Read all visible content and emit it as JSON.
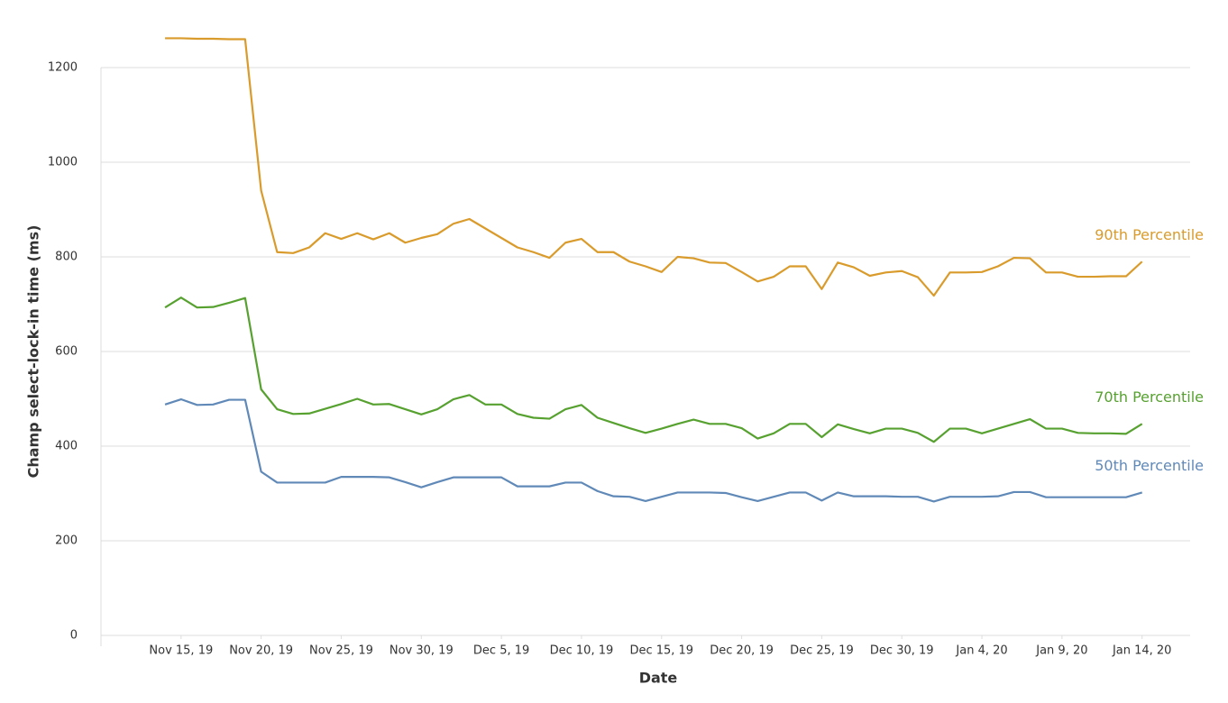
{
  "chart_data": {
    "type": "line",
    "xlabel": "Date",
    "ylabel": "Champ select-lock-in time (ms)",
    "x": [
      "2019-11-14",
      "2019-11-15",
      "2019-11-16",
      "2019-11-17",
      "2019-11-18",
      "2019-11-19",
      "2019-11-20",
      "2019-11-21",
      "2019-11-22",
      "2019-11-23",
      "2019-11-24",
      "2019-11-25",
      "2019-11-26",
      "2019-11-27",
      "2019-11-28",
      "2019-11-29",
      "2019-11-30",
      "2019-12-01",
      "2019-12-02",
      "2019-12-03",
      "2019-12-04",
      "2019-12-05",
      "2019-12-06",
      "2019-12-07",
      "2019-12-08",
      "2019-12-09",
      "2019-12-10",
      "2019-12-11",
      "2019-12-12",
      "2019-12-13",
      "2019-12-14",
      "2019-12-15",
      "2019-12-16",
      "2019-12-17",
      "2019-12-18",
      "2019-12-19",
      "2019-12-20",
      "2019-12-21",
      "2019-12-22",
      "2019-12-23",
      "2019-12-24",
      "2019-12-25",
      "2019-12-26",
      "2019-12-27",
      "2019-12-28",
      "2019-12-29",
      "2019-12-30",
      "2019-12-31",
      "2020-01-01",
      "2020-01-02",
      "2020-01-03",
      "2020-01-04",
      "2020-01-05",
      "2020-01-06",
      "2020-01-07",
      "2020-01-08",
      "2020-01-09",
      "2020-01-10",
      "2020-01-11",
      "2020-01-12",
      "2020-01-13",
      "2020-01-14"
    ],
    "series": [
      {
        "name": "90th Percentile",
        "color": "#d99b2b",
        "values": [
          1262,
          1262,
          1261,
          1261,
          1260,
          1260,
          940,
          810,
          808,
          820,
          850,
          838,
          850,
          837,
          850,
          830,
          840,
          848,
          870,
          880,
          860,
          840,
          820,
          810,
          798,
          830,
          838,
          810,
          810,
          790,
          780,
          768,
          800,
          797,
          788,
          787,
          768,
          748,
          758,
          780,
          780,
          732,
          788,
          778,
          760,
          767,
          770,
          757,
          718,
          767,
          767,
          768,
          780,
          798,
          797,
          767,
          767,
          758,
          758,
          759,
          759,
          790
        ]
      },
      {
        "name": "70th Percentile",
        "color": "#57a130",
        "values": [
          693,
          714,
          693,
          694,
          703,
          713,
          520,
          478,
          468,
          469,
          479,
          489,
          500,
          488,
          489,
          478,
          467,
          478,
          499,
          508,
          488,
          488,
          468,
          460,
          458,
          478,
          487,
          460,
          449,
          438,
          428,
          437,
          447,
          456,
          447,
          447,
          438,
          416,
          427,
          447,
          447,
          419,
          446,
          436,
          427,
          437,
          437,
          428,
          409,
          437,
          437,
          427,
          437,
          447,
          457,
          437,
          437,
          428,
          427,
          427,
          426,
          447
        ]
      },
      {
        "name": "50th Percentile",
        "color": "#6089b8",
        "values": [
          488,
          499,
          487,
          488,
          498,
          498,
          346,
          323,
          323,
          323,
          323,
          335,
          335,
          335,
          334,
          324,
          313,
          324,
          334,
          334,
          334,
          334,
          315,
          315,
          315,
          323,
          323,
          305,
          294,
          293,
          284,
          293,
          302,
          302,
          302,
          301,
          292,
          284,
          293,
          302,
          302,
          285,
          302,
          294,
          294,
          294,
          293,
          293,
          283,
          293,
          293,
          293,
          294,
          303,
          303,
          292,
          292,
          292,
          292,
          292,
          292,
          302
        ]
      }
    ],
    "xlim": [
      "2019-11-10",
      "2020-01-17"
    ],
    "xticks": [
      {
        "value": "2019-11-15",
        "label": "Nov 15, 19"
      },
      {
        "value": "2019-11-20",
        "label": "Nov 20, 19"
      },
      {
        "value": "2019-11-25",
        "label": "Nov 25, 19"
      },
      {
        "value": "2019-11-30",
        "label": "Nov 30, 19"
      },
      {
        "value": "2019-12-05",
        "label": "Dec 5, 19"
      },
      {
        "value": "2019-12-10",
        "label": "Dec 10, 19"
      },
      {
        "value": "2019-12-15",
        "label": "Dec 15, 19"
      },
      {
        "value": "2019-12-20",
        "label": "Dec 20, 19"
      },
      {
        "value": "2019-12-25",
        "label": "Dec 25, 19"
      },
      {
        "value": "2019-12-30",
        "label": "Dec 30, 19"
      },
      {
        "value": "2020-01-04",
        "label": "Jan 4, 20"
      },
      {
        "value": "2020-01-09",
        "label": "Jan 9, 20"
      },
      {
        "value": "2020-01-14",
        "label": "Jan 14, 20"
      }
    ],
    "ylim": [
      0,
      1200
    ],
    "yticks": [
      0,
      200,
      400,
      600,
      800,
      1000,
      1200
    ],
    "grid": true
  }
}
